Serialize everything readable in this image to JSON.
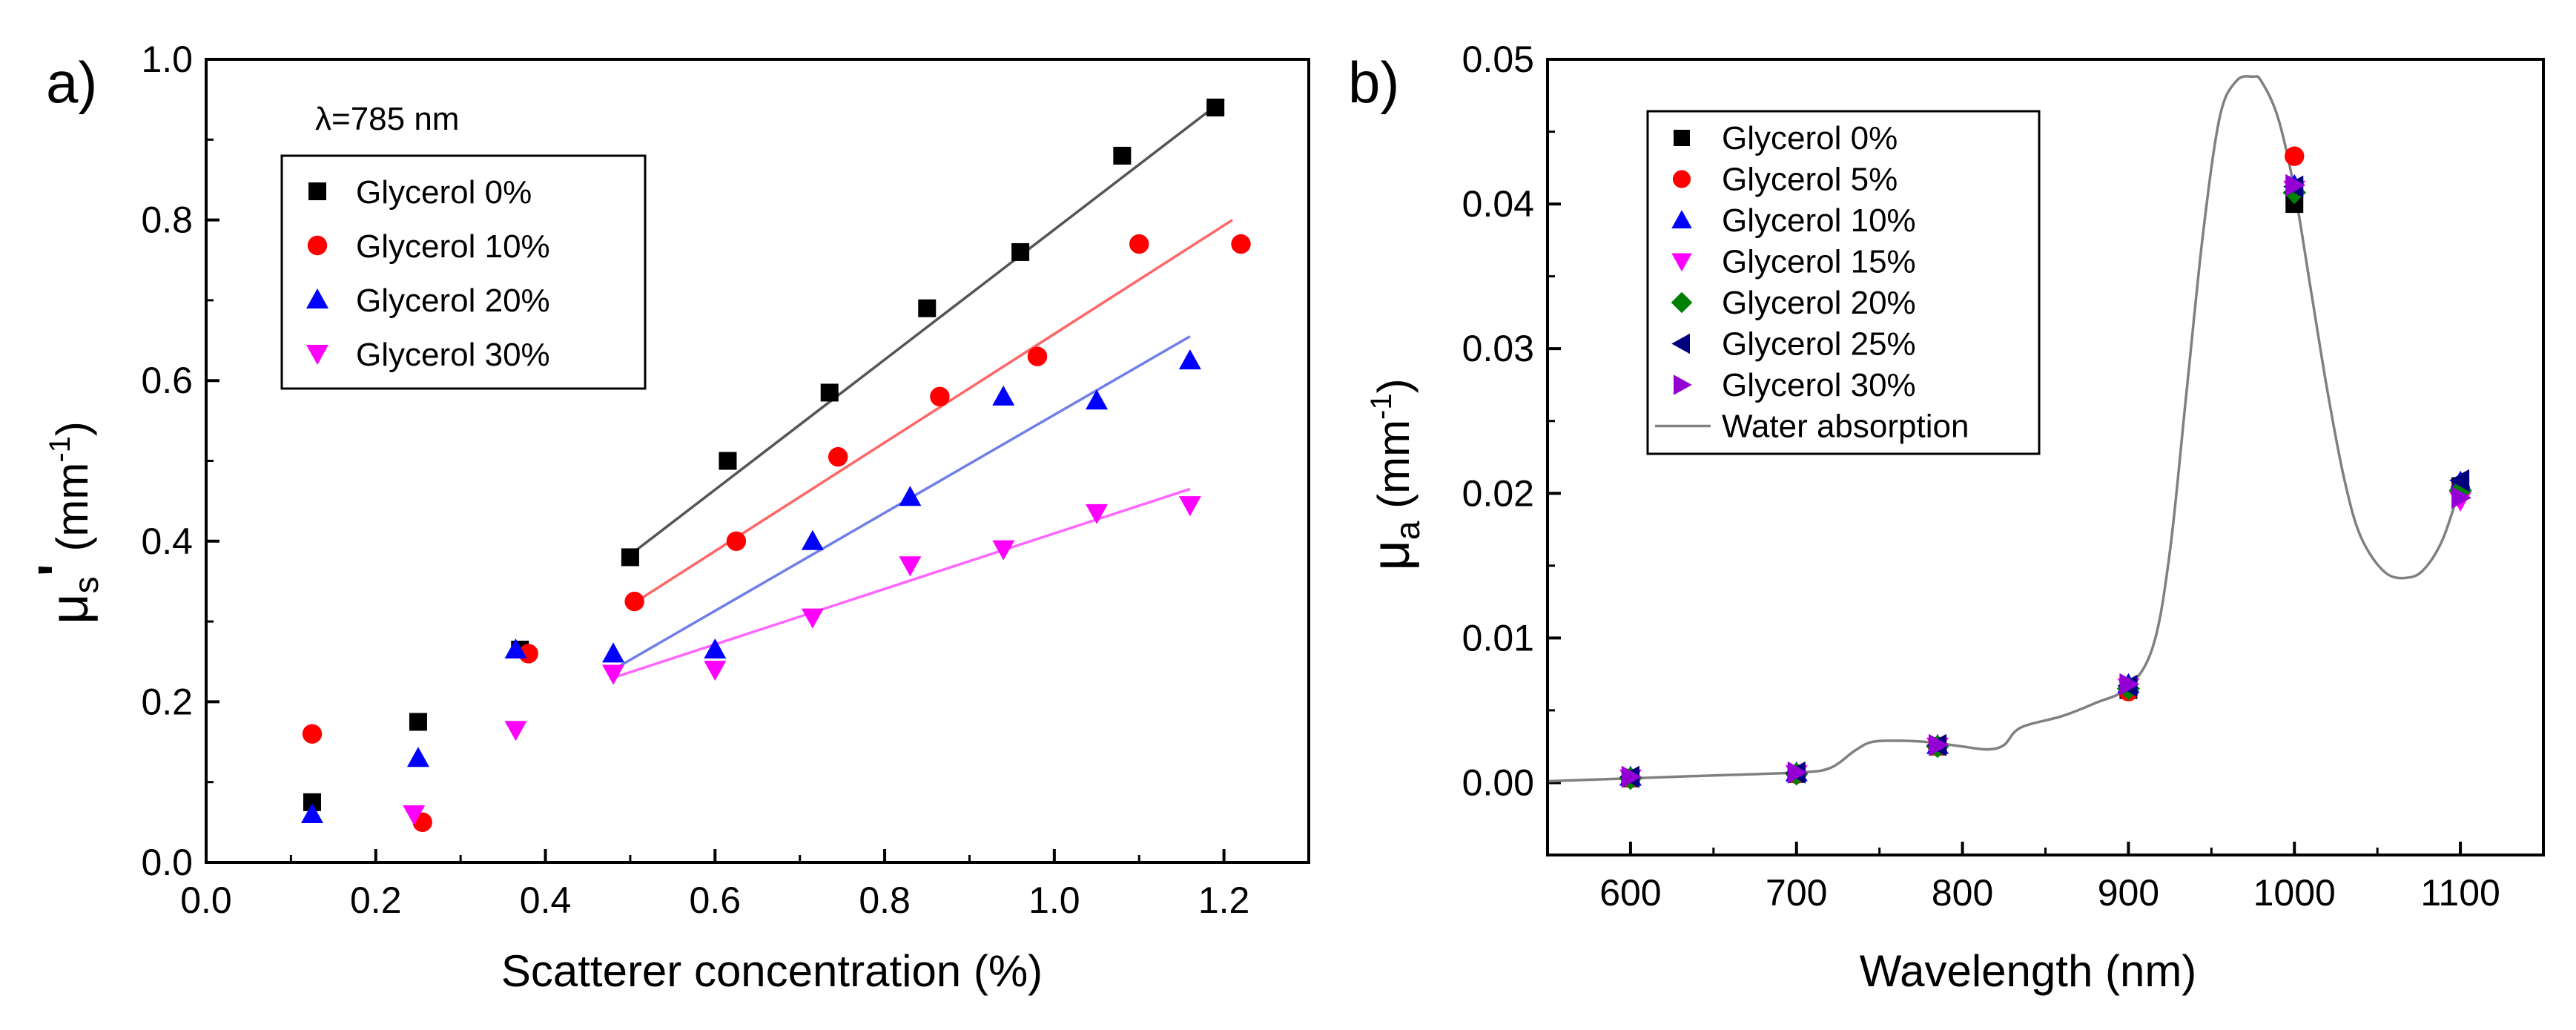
{
  "chart_data": [
    {
      "type": "scatter",
      "panel_label": "a)",
      "annotation": "λ=785 nm",
      "xlabel": "Scatterer concentration (%)",
      "ylabel": "μs' (mm⁻¹)",
      "ylabel_parts": {
        "symbol": "μ",
        "sub": "s",
        "prime": "'",
        "unit_open": " (mm",
        "unit_sup": "-1",
        "unit_close": ")"
      },
      "xlim": [
        0.0,
        1.3
      ],
      "ylim": [
        0.0,
        1.0
      ],
      "xticks": [
        0.0,
        0.2,
        0.4,
        0.6,
        0.8,
        1.0,
        1.2
      ],
      "xtick_labels": [
        "0.0",
        "0.2",
        "0.4",
        "0.6",
        "0.8",
        "1.0",
        "1.2"
      ],
      "yticks": [
        0.0,
        0.2,
        0.4,
        0.6,
        0.8,
        1.0
      ],
      "ytick_labels": [
        "0.0",
        "0.2",
        "0.4",
        "0.6",
        "0.8",
        "1.0"
      ],
      "legend_position": "top-left",
      "series": [
        {
          "name": "Glycerol 0%",
          "marker": "square",
          "color": "#000000",
          "line_color": "#555555",
          "x": [
            0.125,
            0.25,
            0.37,
            0.5,
            0.615,
            0.735,
            0.85,
            0.96,
            1.08,
            1.19
          ],
          "y": [
            0.075,
            0.175,
            0.265,
            0.38,
            0.5,
            0.585,
            0.69,
            0.76,
            0.88,
            0.94
          ],
          "fit": {
            "x": [
              0.49,
              1.2
            ],
            "y": [
              0.375,
              0.95
            ]
          }
        },
        {
          "name": "Glycerol 10%",
          "marker": "circle",
          "color": "#ff0000",
          "line_color": "#ff6666",
          "x": [
            0.125,
            0.255,
            0.38,
            0.505,
            0.625,
            0.745,
            0.865,
            0.98,
            1.1,
            1.22
          ],
          "y": [
            0.16,
            0.05,
            0.26,
            0.325,
            0.4,
            0.505,
            0.58,
            0.63,
            0.77,
            0.77
          ],
          "fit": {
            "x": [
              0.5,
              1.21
            ],
            "y": [
              0.32,
              0.8
            ]
          }
        },
        {
          "name": "Glycerol 20%",
          "marker": "triangle-up",
          "color": "#0000ff",
          "line_color": "#6f7fe8",
          "x": [
            0.125,
            0.25,
            0.365,
            0.48,
            0.6,
            0.715,
            0.83,
            0.94,
            1.05,
            1.16
          ],
          "y": [
            0.06,
            0.13,
            0.265,
            0.26,
            0.265,
            0.4,
            0.455,
            0.58,
            0.575,
            0.625
          ],
          "fit": {
            "x": [
              0.48,
              1.16
            ],
            "y": [
              0.24,
              0.655
            ]
          }
        },
        {
          "name": "Glycerol 30%",
          "marker": "triangle-down",
          "color": "#ff00ff",
          "line_color": "#ff66ff",
          "x": [
            0.245,
            0.365,
            0.48,
            0.6,
            0.715,
            0.83,
            0.94,
            1.05,
            1.16
          ],
          "y": [
            0.06,
            0.165,
            0.235,
            0.24,
            0.305,
            0.37,
            0.39,
            0.435,
            0.445
          ],
          "fit": {
            "x": [
              0.48,
              1.16
            ],
            "y": [
              0.23,
              0.465
            ]
          }
        }
      ]
    },
    {
      "type": "line",
      "panel_label": "b)",
      "xlabel": "Wavelength (nm)",
      "ylabel": "μa (mm⁻¹)",
      "ylabel_parts": {
        "symbol": "μ",
        "sub": "a",
        "unit_open": " (mm",
        "unit_sup": "-1",
        "unit_close": ")"
      },
      "xlim": [
        550,
        1150
      ],
      "ylim": [
        -0.005,
        0.05
      ],
      "xticks": [
        600,
        700,
        800,
        900,
        1000,
        1100
      ],
      "xtick_labels": [
        "600",
        "700",
        "800",
        "900",
        "1000",
        "1100"
      ],
      "yticks": [
        0.0,
        0.01,
        0.02,
        0.03,
        0.04,
        0.05
      ],
      "ytick_labels": [
        "0.00",
        "0.01",
        "0.02",
        "0.03",
        "0.04",
        "0.05"
      ],
      "legend_position": "top-left",
      "line": {
        "name": "Water absorption",
        "color": "#808080",
        "x": [
          550,
          600,
          650,
          700,
          720,
          735,
          745,
          760,
          780,
          800,
          815,
          825,
          835,
          860,
          880,
          900,
          915,
          925,
          935,
          945,
          955,
          965,
          975,
          980,
          990,
          1000,
          1010,
          1020,
          1030,
          1040,
          1055,
          1070,
          1080,
          1090,
          1100
        ],
        "y": [
          0.0001,
          0.0003,
          0.0005,
          0.0007,
          0.001,
          0.0022,
          0.0028,
          0.0029,
          0.0028,
          0.0025,
          0.0023,
          0.0026,
          0.0038,
          0.0046,
          0.0055,
          0.0066,
          0.0095,
          0.016,
          0.027,
          0.038,
          0.046,
          0.0485,
          0.0488,
          0.0485,
          0.046,
          0.041,
          0.034,
          0.027,
          0.021,
          0.017,
          0.0145,
          0.0142,
          0.015,
          0.017,
          0.0205
        ]
      },
      "series": [
        {
          "name": "Glycerol 0%",
          "marker": "square",
          "color": "#000000",
          "x": [
            600,
            700,
            785,
            900,
            1000,
            1100
          ],
          "y": [
            0.0003,
            0.0006,
            0.0025,
            0.0064,
            0.04,
            0.0205
          ]
        },
        {
          "name": "Glycerol 5%",
          "marker": "circle",
          "color": "#ff0000",
          "x": [
            600,
            700,
            785,
            900,
            1000,
            1100
          ],
          "y": [
            0.0003,
            0.0006,
            0.0025,
            0.0063,
            0.0433,
            0.0203
          ]
        },
        {
          "name": "Glycerol 10%",
          "marker": "triangle-up",
          "color": "#0000ff",
          "x": [
            600,
            700,
            785,
            900,
            1000,
            1100
          ],
          "y": [
            0.0004,
            0.0007,
            0.0026,
            0.0068,
            0.0413,
            0.0208
          ]
        },
        {
          "name": "Glycerol 15%",
          "marker": "triangle-down",
          "color": "#ff00ff",
          "x": [
            600,
            700,
            785,
            900,
            1000,
            1100
          ],
          "y": [
            0.0003,
            0.0006,
            0.0025,
            0.0066,
            0.041,
            0.0195
          ]
        },
        {
          "name": "Glycerol 20%",
          "marker": "diamond",
          "color": "#008000",
          "x": [
            600,
            700,
            785,
            900,
            1000,
            1100
          ],
          "y": [
            0.0003,
            0.0006,
            0.0025,
            0.0065,
            0.0408,
            0.0202
          ]
        },
        {
          "name": "Glycerol 25%",
          "marker": "triangle-left",
          "color": "#00007f",
          "x": [
            600,
            700,
            785,
            900,
            1000,
            1100
          ],
          "y": [
            0.0004,
            0.0007,
            0.0026,
            0.0067,
            0.0412,
            0.0209
          ]
        },
        {
          "name": "Glycerol 30%",
          "marker": "triangle-right",
          "color": "#9400d3",
          "x": [
            600,
            700,
            785,
            900,
            1000,
            1100
          ],
          "y": [
            0.0004,
            0.0007,
            0.0026,
            0.0068,
            0.0413,
            0.0197
          ]
        }
      ]
    }
  ]
}
